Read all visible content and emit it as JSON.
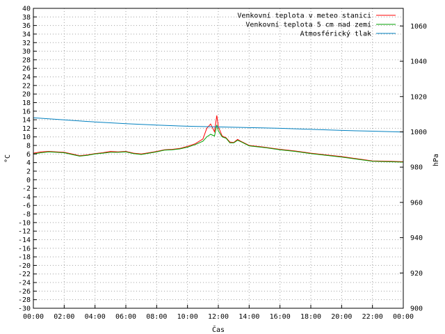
{
  "chart_data": {
    "type": "line",
    "xlabel": "Čas",
    "ylabel_left": "°C",
    "ylabel_right": "hPa",
    "ylim_left": [
      -30,
      40
    ],
    "ylim_right": [
      900,
      1070
    ],
    "grid": true,
    "legend_position": "top-right",
    "x_ticks": [
      "00:00",
      "02:00",
      "04:00",
      "06:00",
      "08:00",
      "10:00",
      "12:00",
      "14:00",
      "16:00",
      "18:00",
      "20:00",
      "22:00",
      "00:00"
    ],
    "y_ticks_left": [
      40,
      38,
      36,
      34,
      32,
      30,
      28,
      26,
      24,
      22,
      20,
      18,
      16,
      14,
      12,
      10,
      8,
      6,
      4,
      2,
      0,
      -2,
      -4,
      -6,
      -8,
      -10,
      -12,
      -14,
      -16,
      -18,
      -20,
      -22,
      -24,
      -26,
      -28,
      -30
    ],
    "y_ticks_right": [
      1060,
      1040,
      1020,
      1000,
      980,
      960,
      940,
      920,
      900
    ],
    "series": [
      {
        "name": "Venkovní teplota v meteo stanici",
        "color": "#ff0000",
        "axis": "left",
        "x": [
          0,
          0.5,
          1,
          2,
          2.5,
          3,
          3.5,
          4,
          4.5,
          5,
          5.5,
          6,
          6.5,
          7,
          7.5,
          8,
          8.5,
          9,
          9.5,
          10,
          10.5,
          11,
          11.25,
          11.5,
          11.75,
          11.9,
          12,
          12.25,
          12.5,
          12.75,
          13,
          13.25,
          13.5,
          14,
          15,
          16,
          17,
          18,
          19,
          20,
          21,
          22,
          23,
          24
        ],
        "y": [
          6.2,
          6.5,
          6.6,
          6.4,
          6.0,
          5.6,
          5.8,
          6.1,
          6.3,
          6.6,
          6.5,
          6.6,
          6.2,
          6.0,
          6.3,
          6.6,
          7.0,
          7.1,
          7.3,
          7.8,
          8.4,
          9.5,
          12.0,
          13.0,
          11.2,
          15.0,
          12.4,
          10.2,
          9.8,
          8.8,
          8.7,
          9.4,
          8.9,
          8.0,
          7.6,
          7.1,
          6.7,
          6.2,
          5.8,
          5.4,
          4.9,
          4.4,
          4.3,
          4.2
        ]
      },
      {
        "name": "Venkovní teplota 5 cm nad zemí",
        "color": "#00a000",
        "axis": "left",
        "x": [
          0,
          0.5,
          1,
          2,
          2.5,
          3,
          3.5,
          4,
          4.5,
          5,
          5.5,
          6,
          6.5,
          7,
          7.5,
          8,
          8.5,
          9,
          9.5,
          10,
          10.5,
          11,
          11.25,
          11.5,
          11.75,
          11.9,
          12,
          12.25,
          12.5,
          12.75,
          13,
          13.25,
          13.5,
          14,
          15,
          16,
          17,
          18,
          19,
          20,
          21,
          22,
          23,
          24
        ],
        "y": [
          6.0,
          6.3,
          6.5,
          6.3,
          5.9,
          5.5,
          5.7,
          6.0,
          6.2,
          6.4,
          6.4,
          6.5,
          6.1,
          5.9,
          6.2,
          6.5,
          6.9,
          7.0,
          7.2,
          7.6,
          8.2,
          9.0,
          10.0,
          10.6,
          10.2,
          12.8,
          11.4,
          10.0,
          9.7,
          8.6,
          8.6,
          9.2,
          8.8,
          7.9,
          7.5,
          7.0,
          6.6,
          6.1,
          5.7,
          5.3,
          4.8,
          4.3,
          4.2,
          4.1
        ]
      },
      {
        "name": "Atmosférický tlak",
        "color": "#0080c0",
        "axis": "right",
        "x": [
          0,
          2,
          4,
          6,
          8,
          10,
          12,
          14,
          16,
          18,
          20,
          22,
          24
        ],
        "y": [
          1008.0,
          1006.8,
          1005.6,
          1004.6,
          1003.8,
          1003.2,
          1002.8,
          1002.4,
          1002.0,
          1001.4,
          1000.8,
          1000.4,
          999.9
        ]
      }
    ]
  }
}
